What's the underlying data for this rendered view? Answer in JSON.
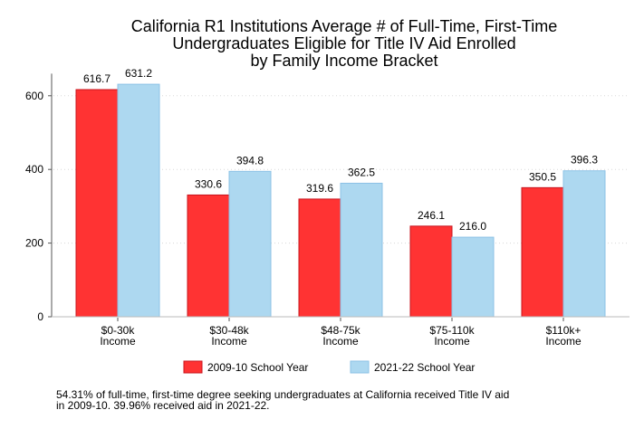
{
  "chart_data": {
    "type": "bar",
    "title_lines": [
      "California R1 Institutions Average # of Full-Time, First-Time",
      "Undergraduates Eligible for Title IV Aid Enrolled",
      "by Family Income Bracket"
    ],
    "categories": [
      [
        "$0-30k",
        "Income"
      ],
      [
        "$30-48k",
        "Income"
      ],
      [
        "$48-75k",
        "Income"
      ],
      [
        "$75-110k",
        "Income"
      ],
      [
        "$110k+",
        "Income"
      ]
    ],
    "series": [
      {
        "name": "2009-10 School Year",
        "values": [
          616.7,
          330.6,
          319.6,
          246.1,
          350.5
        ],
        "labels": [
          "616.7",
          "330.6",
          "319.6",
          "246.1",
          "350.5"
        ],
        "color": "#ff3333"
      },
      {
        "name": "2021-22 School Year",
        "values": [
          631.2,
          394.8,
          362.5,
          216.0,
          396.3
        ],
        "labels": [
          "631.2",
          "394.8",
          "362.5",
          "216.0",
          "396.3"
        ],
        "color": "#add8f0"
      }
    ],
    "y_ticks": [
      0,
      200,
      400,
      600
    ],
    "y_tick_labels": [
      "0",
      "200",
      "400",
      "600"
    ],
    "ylim": [
      0,
      660
    ],
    "grid": true,
    "legend_position": "bottom"
  },
  "footnote_lines": [
    "54.31% of full-time, first-time degree seeking undergraduates at California received Title IV aid",
    "in 2009-10. 39.96% received aid in 2021-22."
  ]
}
